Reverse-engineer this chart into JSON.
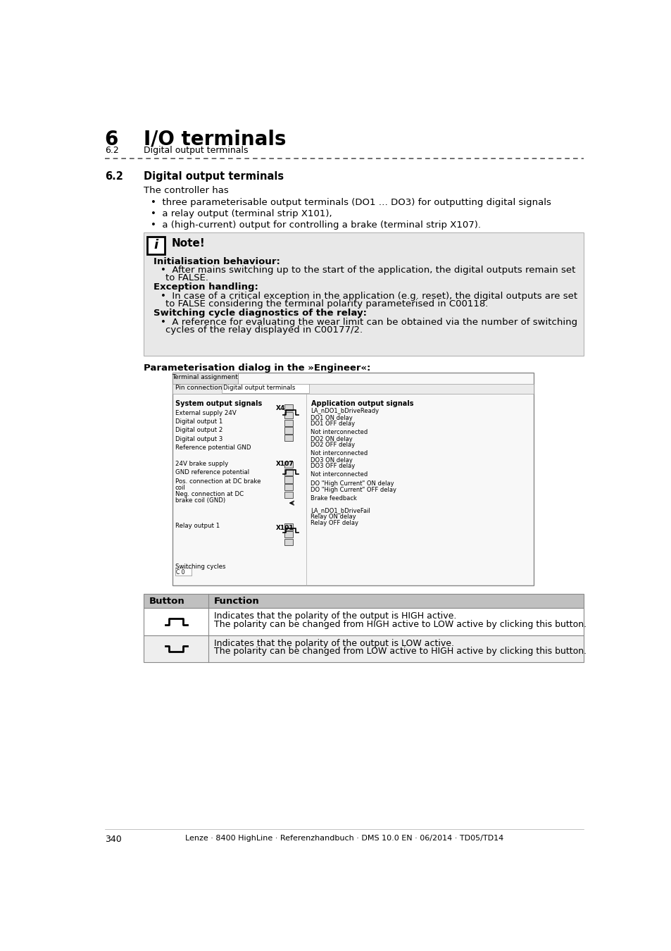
{
  "page_number": "340",
  "footer_text": "Lenze · 8400 HighLine · Referenzhandbuch · DMS 10.0 EN · 06/2014 · TD05/TD14",
  "header_chapter": "6",
  "header_title": "I/O terminals",
  "header_sub": "6.2",
  "header_subtitle": "Digital output terminals",
  "section_number": "6.2",
  "section_title": "Digital output terminals",
  "intro_text": "The controller has",
  "bullet_points": [
    "three parameterisable output terminals (DO1 … DO3) for outputting digital signals",
    "a relay output (terminal strip X101),",
    "a (high-current) output for controlling a brake (terminal strip X107)."
  ],
  "note_title": "Note!",
  "note_sections": [
    {
      "heading": "Initialisation behaviour:",
      "bullets": [
        "After mains switching up to the start of the application, the digital outputs remain set\nto FALSE."
      ]
    },
    {
      "heading": "Exception handling:",
      "bullets": [
        "In case of a critical exception in the application (e.g. reset), the digital outputs are set\nto FALSE considering the terminal polarity parameterised in C00118."
      ]
    },
    {
      "heading": "Switching cycle diagnostics of the relay:",
      "bullets": [
        "A reference for evaluating the wear limit can be obtained via the number of switching\ncycles of the relay displayed in C00177/2."
      ]
    }
  ],
  "param_dialog_title": "Parameterisation dialog in the »Engineer«:",
  "table_header_button": "Button",
  "table_header_function": "Function",
  "table_rows": [
    {
      "button_symbol": "high_active",
      "function_line1": "Indicates that the polarity of the output is HIGH active.",
      "function_line2": "The polarity can be changed from HIGH active to LOW active by clicking this button."
    },
    {
      "button_symbol": "low_active",
      "function_line1": "Indicates that the polarity of the output is LOW active.",
      "function_line2": "The polarity can be changed from LOW active to HIGH active by clicking this button."
    }
  ],
  "bg_color": "#ffffff",
  "note_bg_color": "#e8e8e8",
  "table_header_bg": "#c0c0c0",
  "table_row1_bg": "#ffffff",
  "table_row2_bg": "#eeeeee",
  "text_color": "#000000",
  "link_color": "#0000cc",
  "dash_color": "#555555"
}
